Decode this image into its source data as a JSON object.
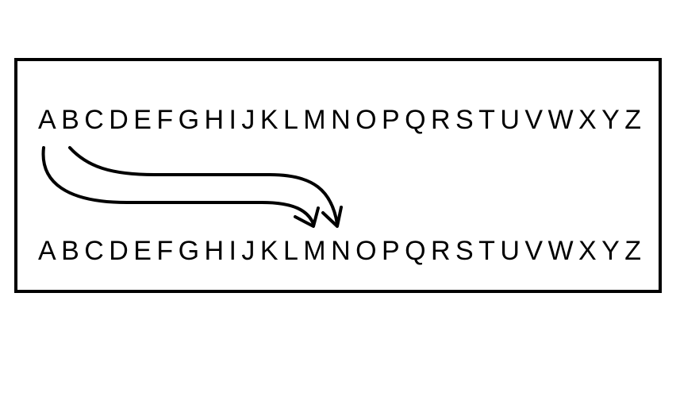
{
  "plain_alphabet": [
    "A",
    "B",
    "C",
    "D",
    "E",
    "F",
    "G",
    "H",
    "I",
    "J",
    "K",
    "L",
    "M",
    "N",
    "O",
    "P",
    "Q",
    "R",
    "S",
    "T",
    "U",
    "V",
    "W",
    "X",
    "Y",
    "Z"
  ],
  "cipher_alphabet": [
    "A",
    "B",
    "C",
    "D",
    "E",
    "F",
    "G",
    "H",
    "I",
    "J",
    "K",
    "L",
    "M",
    "N",
    "O",
    "P",
    "Q",
    "R",
    "S",
    "T",
    "U",
    "V",
    "W",
    "X",
    "Y",
    "Z"
  ],
  "colors": {
    "ink": "#000000",
    "background": "#ffffff"
  },
  "arrows": [
    {
      "from": "A",
      "to": "M"
    },
    {
      "from": "B",
      "to": "N"
    }
  ]
}
